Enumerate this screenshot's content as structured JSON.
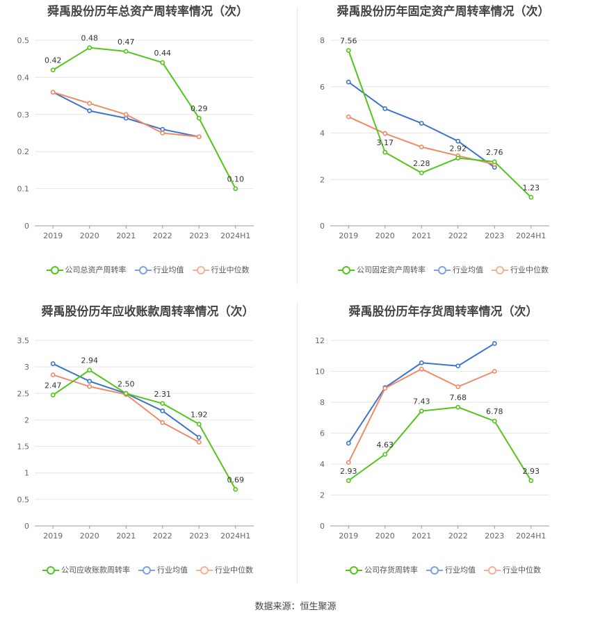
{
  "source": "数据来源：恒生聚源",
  "chart_data": [
    {
      "type": "line",
      "title": "舜禹股份历年总资产周转率情况（次）",
      "categories": [
        "2019",
        "2020",
        "2021",
        "2022",
        "2023",
        "2024H1"
      ],
      "ylim": [
        0,
        0.5
      ],
      "yticks": [
        "0",
        "0.1",
        "0.2",
        "0.3",
        "0.4",
        "0.5"
      ],
      "grid": true,
      "legend_position": "bottom",
      "series": [
        {
          "name": "公司总资产周转率",
          "color": "#52c41a",
          "values": [
            0.42,
            0.48,
            0.47,
            0.44,
            0.29,
            0.1
          ],
          "labels": [
            "0.42",
            "0.48",
            "0.47",
            "0.44",
            "0.29",
            "0.10"
          ]
        },
        {
          "name": "行业均值",
          "color": "#3b73d1",
          "values": [
            0.36,
            0.31,
            0.29,
            0.26,
            0.24,
            null
          ]
        },
        {
          "name": "行业中位数",
          "color": "#f08a64",
          "values": [
            0.36,
            0.33,
            0.3,
            0.25,
            0.24,
            null
          ]
        }
      ]
    },
    {
      "type": "line",
      "title": "舜禹股份历年固定资产周转率情况（次）",
      "categories": [
        "2019",
        "2020",
        "2021",
        "2022",
        "2023",
        "2024H1"
      ],
      "ylim": [
        0,
        8
      ],
      "yticks": [
        "0",
        "2",
        "4",
        "6",
        "8"
      ],
      "grid": true,
      "legend_position": "bottom",
      "series": [
        {
          "name": "公司固定资产周转率",
          "color": "#52c41a",
          "values": [
            7.56,
            3.17,
            2.28,
            2.92,
            2.76,
            1.23
          ],
          "labels": [
            "7.56",
            "3.17",
            "2.28",
            "2.92",
            "2.76",
            "1.23"
          ]
        },
        {
          "name": "行业均值",
          "color": "#3b73d1",
          "values": [
            6.2,
            5.05,
            4.42,
            3.65,
            2.52,
            null
          ]
        },
        {
          "name": "行业中位数",
          "color": "#f08a64",
          "values": [
            4.7,
            3.98,
            3.4,
            3.02,
            2.65,
            null
          ]
        }
      ]
    },
    {
      "type": "line",
      "title": "舜禹股份历年应收账款周转率情况（次）",
      "categories": [
        "2019",
        "2020",
        "2021",
        "2022",
        "2023",
        "2024H1"
      ],
      "ylim": [
        0,
        3.5
      ],
      "yticks": [
        "0",
        "0.5",
        "1",
        "1.5",
        "2",
        "2.5",
        "3",
        "3.5"
      ],
      "grid": true,
      "legend_position": "bottom",
      "series": [
        {
          "name": "公司应收账款周转率",
          "color": "#52c41a",
          "values": [
            2.47,
            2.94,
            2.5,
            2.31,
            1.92,
            0.69
          ],
          "labels": [
            "2.47",
            "2.94",
            "2.50",
            "2.31",
            "1.92",
            "0.69"
          ]
        },
        {
          "name": "行业均值",
          "color": "#3b73d1",
          "values": [
            3.06,
            2.73,
            2.5,
            2.17,
            1.67,
            null
          ]
        },
        {
          "name": "行业中位数",
          "color": "#f08a64",
          "values": [
            2.85,
            2.63,
            2.48,
            1.95,
            1.58,
            null
          ]
        }
      ]
    },
    {
      "type": "line",
      "title": "舜禹股份历年存货周转率情况（次）",
      "categories": [
        "2019",
        "2020",
        "2021",
        "2022",
        "2023",
        "2024H1"
      ],
      "ylim": [
        0,
        12
      ],
      "yticks": [
        "0",
        "2",
        "4",
        "6",
        "8",
        "10",
        "12"
      ],
      "grid": true,
      "legend_position": "bottom",
      "series": [
        {
          "name": "公司存货周转率",
          "color": "#52c41a",
          "values": [
            2.93,
            4.63,
            7.43,
            7.68,
            6.78,
            2.93
          ],
          "labels": [
            "2.93",
            "4.63",
            "7.43",
            "7.68",
            "6.78",
            "2.93"
          ]
        },
        {
          "name": "行业均值",
          "color": "#3b73d1",
          "values": [
            5.35,
            8.95,
            10.55,
            10.35,
            11.8,
            null
          ]
        },
        {
          "name": "行业中位数",
          "color": "#f08a64",
          "values": [
            4.1,
            8.9,
            10.15,
            9.0,
            10.0,
            null
          ]
        }
      ]
    }
  ]
}
